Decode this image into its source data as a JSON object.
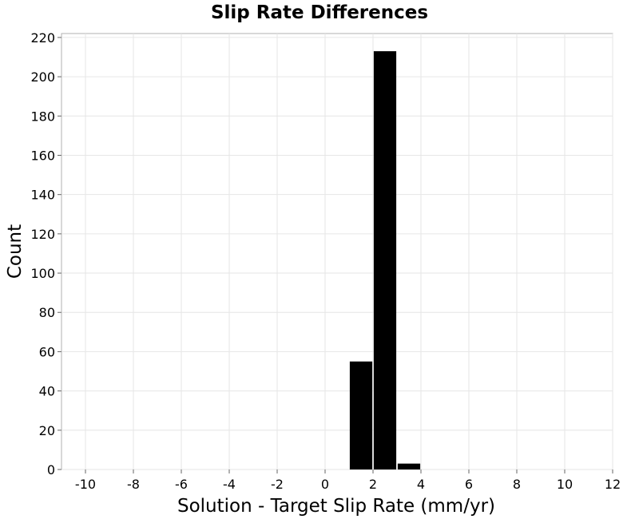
{
  "chart_data": {
    "type": "bar",
    "title": "Slip Rate Differences",
    "xlabel": "Solution - Target Slip Rate (mm/yr)",
    "ylabel": "Count",
    "xlim": [
      -11,
      12
    ],
    "ylim": [
      0,
      222
    ],
    "x_ticks": [
      -10,
      -8,
      -6,
      -4,
      -2,
      0,
      2,
      4,
      6,
      8,
      10,
      12
    ],
    "y_ticks": [
      0,
      20,
      40,
      60,
      80,
      100,
      120,
      140,
      160,
      180,
      200,
      220
    ],
    "bin_width": 1,
    "bins": [
      {
        "x": 1.5,
        "count": 55
      },
      {
        "x": 2.5,
        "count": 213
      },
      {
        "x": 3.5,
        "count": 3
      }
    ],
    "grid": true,
    "bar_color": "#000000"
  }
}
